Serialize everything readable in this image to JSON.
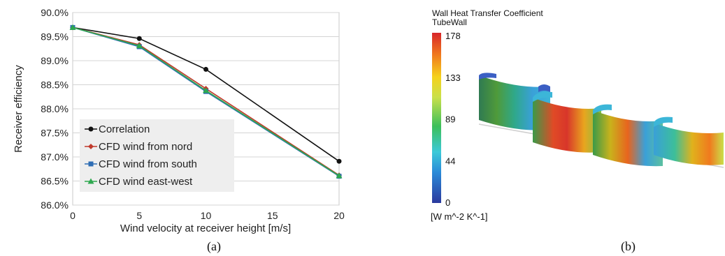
{
  "chart_data": [
    {
      "type": "line",
      "panel": "(a)",
      "title": "",
      "xlabel": "Wind velocity at receiver height [m/s]",
      "ylabel": "Receiver efficiency",
      "xlim": [
        0,
        20
      ],
      "ylim": [
        86.0,
        90.0
      ],
      "x_ticks": [
        "0",
        "5",
        "10",
        "15",
        "20"
      ],
      "y_ticks": [
        "86.0%",
        "86.5%",
        "87.0%",
        "87.5%",
        "88.0%",
        "88.5%",
        "89.0%",
        "89.5%",
        "90.0%"
      ],
      "grid": "horizontal",
      "legend_position": "left-center",
      "x": [
        0,
        5,
        10,
        20
      ],
      "series": [
        {
          "name": "Correlation",
          "color": "#111111",
          "marker": "circle",
          "values": [
            89.69,
            89.46,
            88.82,
            86.91
          ]
        },
        {
          "name": "CFD wind from nord",
          "color": "#c0392b",
          "marker": "diamond",
          "values": [
            89.69,
            89.33,
            88.42,
            86.62
          ]
        },
        {
          "name": "CFD wind from south",
          "color": "#2e6db4",
          "marker": "square",
          "values": [
            89.69,
            89.29,
            88.36,
            86.6
          ]
        },
        {
          "name": "CFD wind east-west",
          "color": "#2ea84f",
          "marker": "triangle",
          "values": [
            89.69,
            89.31,
            88.38,
            86.61
          ]
        }
      ]
    },
    {
      "type": "heatmap",
      "panel": "(b)",
      "title": "Wall Heat Transfer Coefficient",
      "subtitle": "TubeWall",
      "unit": "[W m^-2 K^-1]",
      "range": [
        0,
        178
      ],
      "colorbar_ticks": [
        "178",
        "133",
        "89",
        "44",
        "0"
      ],
      "colorbar_colors": [
        "#2b3a9e",
        "#2a8ad8",
        "#3cc9d8",
        "#3cbf5a",
        "#c9e04a",
        "#f5d21c",
        "#f07a1e",
        "#d8262a"
      ]
    }
  ],
  "captions": {
    "a": "(a)",
    "b": "(b)"
  }
}
